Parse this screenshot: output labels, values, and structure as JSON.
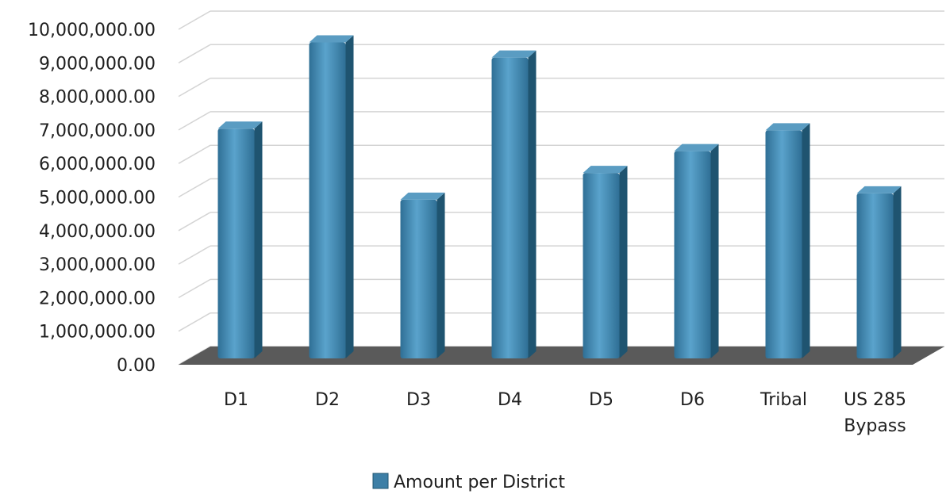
{
  "chart_data": {
    "type": "bar",
    "title": "",
    "xlabel": "",
    "ylabel": "",
    "categories": [
      "D1",
      "D2",
      "D3",
      "D4",
      "D5",
      "D6",
      "Tribal",
      "US 285 Bypass"
    ],
    "category_lines": [
      [
        "D1"
      ],
      [
        "D2"
      ],
      [
        "D3"
      ],
      [
        "D4"
      ],
      [
        "D5"
      ],
      [
        "D6"
      ],
      [
        "Tribal"
      ],
      [
        "US 285",
        "Bypass"
      ]
    ],
    "series": [
      {
        "name": "Amount per District",
        "values": [
          6850000,
          9420000,
          4730000,
          8970000,
          5530000,
          6180000,
          6800000,
          4920000
        ]
      }
    ],
    "ylim": [
      0,
      10000000
    ],
    "y_ticks": [
      "0.00",
      "1,000,000.00",
      "2,000,000.00",
      "3,000,000.00",
      "4,000,000.00",
      "5,000,000.00",
      "6,000,000.00",
      "7,000,000.00",
      "8,000,000.00",
      "9,000,000.00",
      "10,000,000.00"
    ],
    "grid": true,
    "legend_position": "bottom",
    "colors": {
      "bar": "#3d7fa6",
      "bar_light": "#6aaed2",
      "bar_side": "#1f5470",
      "bar_top": "#5a9cc2",
      "floor": "#5a5a5a",
      "grid": "#d4d4d4"
    }
  }
}
